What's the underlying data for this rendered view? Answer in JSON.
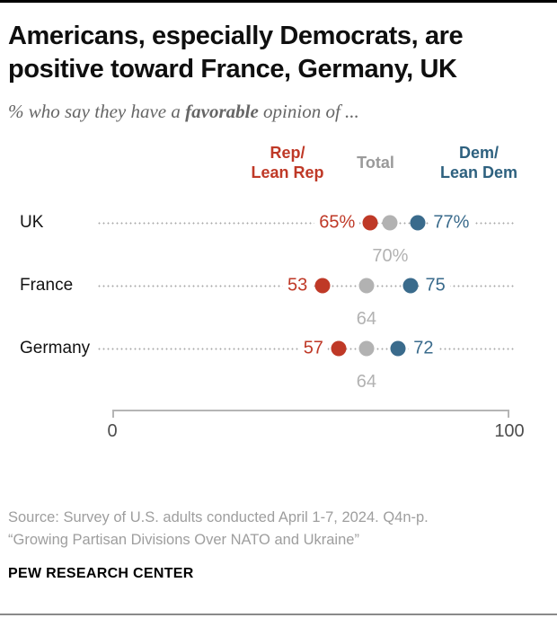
{
  "header": {
    "title_line1": "Americans, especially Democrats, are",
    "title_line2": "positive toward France, Germany, UK",
    "subtitle_prefix": "% who say they have a ",
    "subtitle_bold": "favorable",
    "subtitle_suffix": " opinion of ..."
  },
  "colors": {
    "rep": "#bf3927",
    "total_dot": "#b2b2b2",
    "dem": "#3a6b8c",
    "legend_total": "#9a9a9a",
    "legend_dem": "#2e617f",
    "axis_line": "#b5b5b5",
    "axis_label": "#4d4d4d"
  },
  "chart_data": {
    "type": "scatter",
    "subtype": "dot-plot",
    "categories": [
      "UK",
      "France",
      "Germany"
    ],
    "series": [
      {
        "name": "Rep/Lean Rep",
        "color": "#bf3927",
        "values": [
          65,
          53,
          57
        ],
        "labels": [
          "65%",
          "53",
          "57"
        ]
      },
      {
        "name": "Total",
        "color": "#b2b2b2",
        "values": [
          70,
          64,
          64
        ],
        "labels": [
          "70%",
          "64",
          "64"
        ]
      },
      {
        "name": "Dem/Lean Dem",
        "color": "#3a6b8c",
        "values": [
          77,
          75,
          72
        ],
        "labels": [
          "77%",
          "75",
          "72"
        ]
      }
    ],
    "legend": {
      "rep": "Rep/\nLean Rep",
      "total": "Total",
      "dem": "Dem/\nLean Dem",
      "position": "top"
    },
    "axis": {
      "min": 0,
      "max": 100,
      "ticks": [
        "0",
        "100"
      ],
      "grid": false
    },
    "title": "Americans, especially Democrats, are positive toward France, Germany, UK",
    "xlabel": "",
    "ylabel": ""
  },
  "footer": {
    "source_line1": "Source: Survey of U.S. adults conducted April 1-7, 2024. Q4n-p.",
    "source_line2": "“Growing Partisan Divisions Over NATO and Ukraine”",
    "brand": "PEW RESEARCH CENTER"
  }
}
